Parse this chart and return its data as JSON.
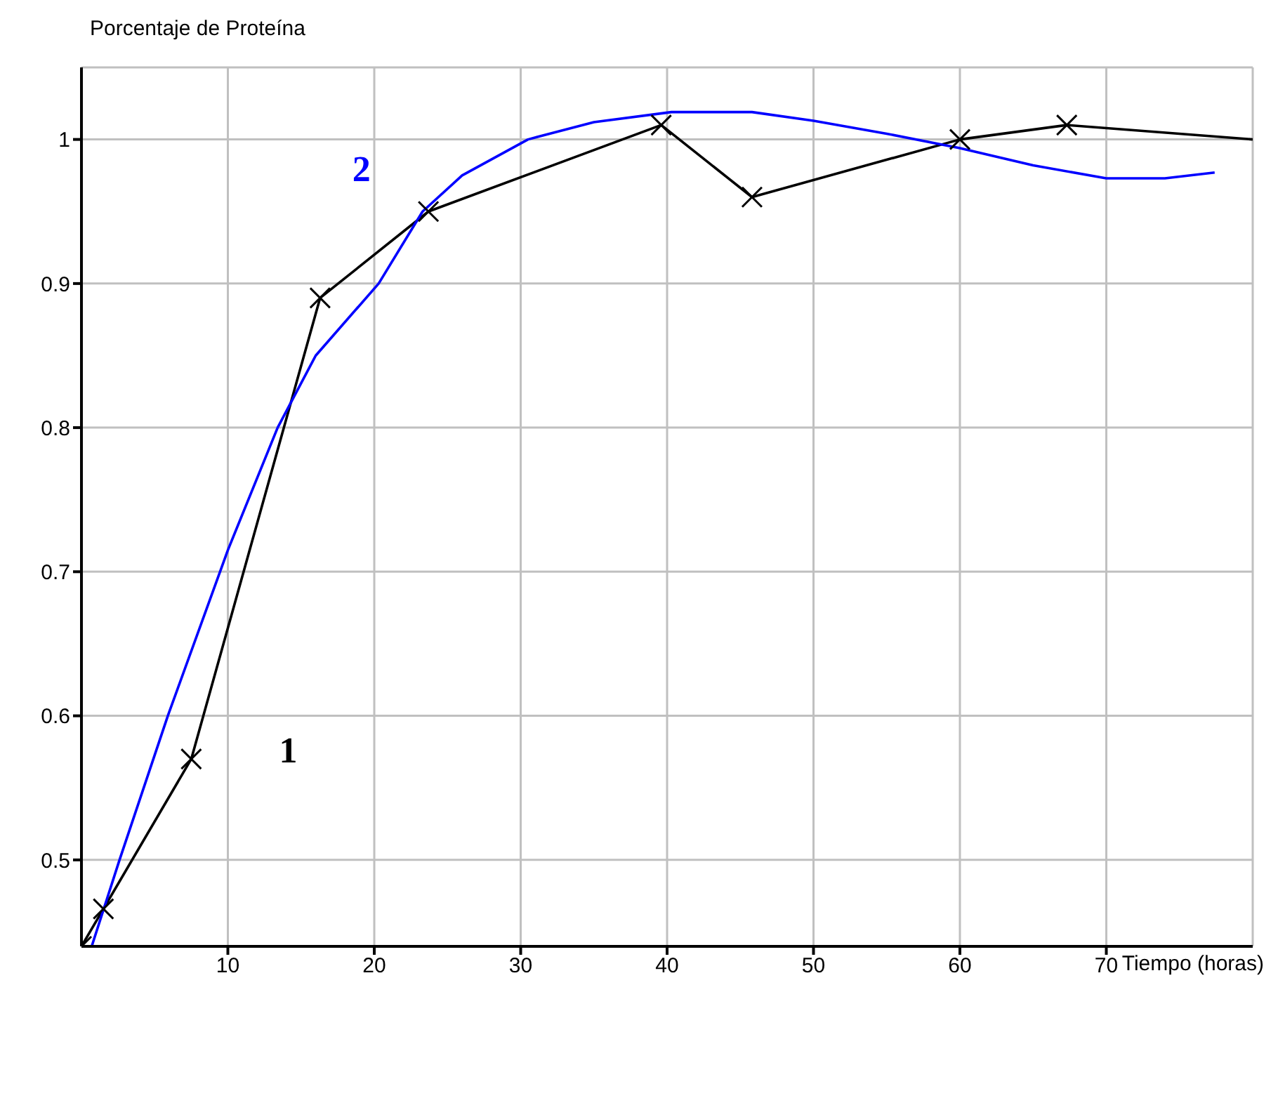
{
  "chart_data": {
    "type": "line",
    "ylabel": "Porcentaje de Proteína",
    "xlabel": "Tiempo (horas)",
    "xlim": [
      0,
      80
    ],
    "xticks": [
      10,
      20,
      30,
      40,
      50,
      60,
      70
    ],
    "ylim": [
      0.44,
      1.05
    ],
    "yticks": [
      0.5,
      0.6,
      0.7,
      0.8,
      0.9,
      1
    ],
    "grid": true,
    "line_style": "solid",
    "series": [
      {
        "name": "1",
        "color": "#000000",
        "marker": "cross",
        "x": [
          0,
          1.5,
          7.5,
          16.3,
          23.7,
          39.6,
          45.8,
          60,
          67.3
        ],
        "values": [
          0.44,
          0.466,
          0.57,
          0.89,
          0.95,
          1.01,
          0.96,
          1.0,
          1.01
        ]
      },
      {
        "color": "#000000",
        "marker": "none",
        "x": [
          67.3,
          80
        ],
        "values": [
          1.01,
          1.0
        ]
      },
      {
        "name": "2",
        "color": "#0000ff",
        "marker": "none",
        "x": [
          0.7,
          2.6,
          5.9,
          10,
          13.4,
          16,
          20.3,
          23.3,
          26,
          30.5,
          35,
          40.3,
          45.8,
          50,
          55,
          60,
          65,
          70,
          74,
          77.4
        ],
        "values": [
          0.44,
          0.5,
          0.6,
          0.715,
          0.8,
          0.85,
          0.9,
          0.95,
          0.975,
          1.0,
          1.012,
          1.019,
          1.019,
          1.013,
          1.004,
          0.994,
          0.982,
          0.973,
          0.973,
          0.977
        ]
      }
    ]
  }
}
